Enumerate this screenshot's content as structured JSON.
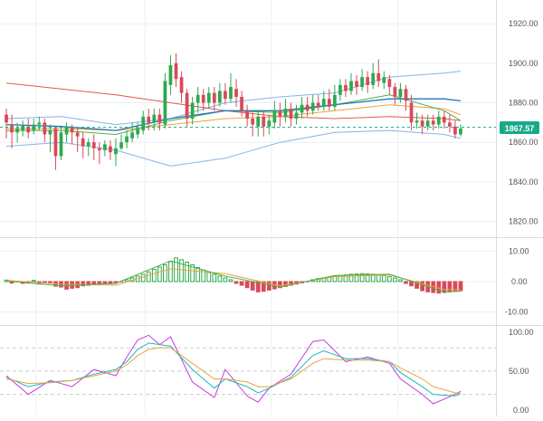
{
  "colors": {
    "up": "#2eaa4e",
    "down": "#d94a5a",
    "bb_band": "#8ab2ea",
    "ma_red": "#e05a4f",
    "ma_green": "#4bb04b",
    "ma_blue": "#1f77b4",
    "ma_orange": "#e8a43c",
    "stoch_purple": "#c63bdc",
    "stoch_teal": "#20b6c2",
    "stoch_orange": "#e8a43c",
    "price_badge": "#18a98b",
    "grid": "#eceff2",
    "axis": "#555555"
  },
  "price_axis_ticks": [
    "1920.00",
    "1900.00",
    "1880.00",
    "1860.00",
    "1840.00",
    "1820.00"
  ],
  "current_price_label": "1867.57",
  "macd_axis_ticks": [
    "10.00",
    "0.00",
    "-10.00"
  ],
  "stoch_axis_ticks": [
    "100.00",
    "50.00",
    "0.00"
  ],
  "chart_data": [
    {
      "type": "candlestick",
      "panel": "price",
      "ylim": [
        1812,
        1932
      ],
      "current_price": 1867.57,
      "candles": [
        [
          1874,
          1870,
          1877,
          1862
        ],
        [
          1869,
          1865,
          1874,
          1857
        ],
        [
          1865,
          1867,
          1870,
          1860
        ],
        [
          1866,
          1869,
          1871,
          1863
        ],
        [
          1868,
          1865,
          1872,
          1862
        ],
        [
          1866,
          1869,
          1872,
          1864
        ],
        [
          1869,
          1870,
          1873,
          1866
        ],
        [
          1870,
          1864,
          1872,
          1860
        ],
        [
          1864,
          1866,
          1869,
          1855
        ],
        [
          1867,
          1853,
          1868,
          1846
        ],
        [
          1853,
          1865,
          1867,
          1851
        ],
        [
          1864,
          1868,
          1870,
          1860
        ],
        [
          1868,
          1865,
          1869,
          1859
        ],
        [
          1865,
          1863,
          1867,
          1855
        ],
        [
          1862,
          1858,
          1865,
          1852
        ],
        [
          1858,
          1860,
          1862,
          1853
        ],
        [
          1860,
          1857,
          1864,
          1851
        ],
        [
          1857,
          1856,
          1860,
          1849
        ],
        [
          1856,
          1859,
          1861,
          1853
        ],
        [
          1858,
          1855,
          1861,
          1851
        ],
        [
          1854,
          1857,
          1862,
          1848
        ],
        [
          1857,
          1860,
          1864,
          1856
        ],
        [
          1860,
          1863,
          1866,
          1857
        ],
        [
          1862,
          1865,
          1870,
          1860
        ],
        [
          1864,
          1867,
          1870,
          1862
        ],
        [
          1866,
          1873,
          1876,
          1864
        ],
        [
          1873,
          1870,
          1877,
          1866
        ],
        [
          1870,
          1874,
          1877,
          1866
        ],
        [
          1874,
          1870,
          1877,
          1866
        ],
        [
          1869,
          1891,
          1895,
          1867
        ],
        [
          1889,
          1899,
          1904,
          1884
        ],
        [
          1900,
          1892,
          1905,
          1888
        ],
        [
          1893,
          1885,
          1896,
          1880
        ],
        [
          1885,
          1872,
          1887,
          1868
        ],
        [
          1872,
          1880,
          1883,
          1869
        ],
        [
          1880,
          1884,
          1888,
          1875
        ],
        [
          1884,
          1880,
          1887,
          1876
        ],
        [
          1880,
          1885,
          1888,
          1877
        ],
        [
          1885,
          1880,
          1888,
          1876
        ],
        [
          1880,
          1886,
          1890,
          1878
        ],
        [
          1886,
          1882,
          1890,
          1879
        ],
        [
          1882,
          1888,
          1895,
          1880
        ],
        [
          1887,
          1883,
          1892,
          1878
        ],
        [
          1883,
          1876,
          1886,
          1873
        ],
        [
          1876,
          1872,
          1879,
          1868
        ],
        [
          1872,
          1869,
          1875,
          1863
        ],
        [
          1868,
          1873,
          1876,
          1863
        ],
        [
          1873,
          1868,
          1876,
          1863
        ],
        [
          1868,
          1871,
          1874,
          1864
        ],
        [
          1870,
          1876,
          1881,
          1867
        ],
        [
          1876,
          1873,
          1880,
          1868
        ],
        [
          1873,
          1877,
          1882,
          1870
        ],
        [
          1877,
          1872,
          1880,
          1868
        ],
        [
          1872,
          1875,
          1879,
          1869
        ],
        [
          1875,
          1879,
          1883,
          1872
        ],
        [
          1879,
          1876,
          1883,
          1873
        ],
        [
          1876,
          1880,
          1884,
          1874
        ],
        [
          1880,
          1878,
          1884,
          1876
        ],
        [
          1878,
          1882,
          1886,
          1876
        ],
        [
          1882,
          1878,
          1887,
          1876
        ],
        [
          1878,
          1884,
          1889,
          1876
        ],
        [
          1884,
          1889,
          1892,
          1881
        ],
        [
          1889,
          1886,
          1892,
          1883
        ],
        [
          1886,
          1891,
          1895,
          1884
        ],
        [
          1891,
          1888,
          1894,
          1884
        ],
        [
          1888,
          1893,
          1897,
          1886
        ],
        [
          1893,
          1889,
          1896,
          1885
        ],
        [
          1889,
          1895,
          1900,
          1887
        ],
        [
          1895,
          1891,
          1902,
          1888
        ],
        [
          1890,
          1893,
          1896,
          1887
        ],
        [
          1892,
          1888,
          1894,
          1884
        ],
        [
          1888,
          1883,
          1890,
          1879
        ],
        [
          1883,
          1887,
          1890,
          1880
        ],
        [
          1887,
          1881,
          1889,
          1876
        ],
        [
          1880,
          1870,
          1884,
          1866
        ],
        [
          1870,
          1871,
          1875,
          1867
        ],
        [
          1871,
          1868,
          1874,
          1864
        ],
        [
          1868,
          1871,
          1874,
          1866
        ],
        [
          1871,
          1869,
          1874,
          1866
        ],
        [
          1869,
          1873,
          1876,
          1867
        ],
        [
          1873,
          1870,
          1876,
          1867
        ],
        [
          1870,
          1868,
          1874,
          1865
        ],
        [
          1868,
          1864,
          1871,
          1862
        ],
        [
          1864,
          1867,
          1869,
          1863
        ]
      ],
      "bollinger_upper": [
        [
          0,
          1872
        ],
        [
          10,
          1873
        ],
        [
          20,
          1869
        ],
        [
          30,
          1872
        ],
        [
          40,
          1880
        ],
        [
          50,
          1883
        ],
        [
          60,
          1885
        ],
        [
          70,
          1893
        ],
        [
          80,
          1895
        ],
        [
          83,
          1896
        ]
      ],
      "bollinger_lower": [
        [
          0,
          1858
        ],
        [
          10,
          1860
        ],
        [
          20,
          1856
        ],
        [
          30,
          1848
        ],
        [
          40,
          1852
        ],
        [
          50,
          1860
        ],
        [
          60,
          1865
        ],
        [
          70,
          1866
        ],
        [
          80,
          1864
        ],
        [
          83,
          1862
        ]
      ],
      "ma_red": [
        [
          0,
          1890
        ],
        [
          10,
          1887
        ],
        [
          20,
          1884
        ],
        [
          30,
          1880
        ],
        [
          40,
          1876
        ],
        [
          50,
          1873
        ],
        [
          60,
          1872
        ],
        [
          70,
          1873
        ],
        [
          80,
          1872
        ],
        [
          83,
          1871
        ]
      ],
      "ma_green": [
        [
          0,
          1866
        ],
        [
          10,
          1866
        ],
        [
          20,
          1864
        ],
        [
          30,
          1871
        ],
        [
          40,
          1876
        ],
        [
          50,
          1875
        ],
        [
          60,
          1879
        ],
        [
          70,
          1884
        ],
        [
          80,
          1876
        ],
        [
          83,
          1871
        ]
      ],
      "ma_blue": [
        [
          0,
          1869
        ],
        [
          10,
          1868
        ],
        [
          20,
          1866
        ],
        [
          30,
          1872
        ],
        [
          40,
          1876
        ],
        [
          50,
          1876
        ],
        [
          60,
          1879
        ],
        [
          70,
          1882
        ],
        [
          80,
          1882
        ],
        [
          83,
          1881
        ]
      ],
      "ma_orange": [
        [
          0,
          1867
        ],
        [
          10,
          1867
        ],
        [
          20,
          1866
        ],
        [
          30,
          1869
        ],
        [
          40,
          1872
        ],
        [
          50,
          1873
        ],
        [
          60,
          1876
        ],
        [
          70,
          1879
        ],
        [
          80,
          1877
        ],
        [
          83,
          1874
        ]
      ]
    },
    {
      "type": "bar",
      "panel": "macd",
      "ylim": [
        -14,
        14
      ],
      "histogram": [
        0.5,
        -0.5,
        0.2,
        -0.6,
        -0.5,
        0.4,
        -0.8,
        -0.4,
        -0.6,
        -1.5,
        -1.8,
        -2.5,
        -2.2,
        -2.0,
        -1.4,
        -1.2,
        -0.8,
        -1.0,
        -0.6,
        -0.7,
        -0.4,
        -0.3,
        0.6,
        1.2,
        1.8,
        2.4,
        3.2,
        4.0,
        4.8,
        5.5,
        6.6,
        7.8,
        7.2,
        6.4,
        5.5,
        4.6,
        3.8,
        3.0,
        2.4,
        1.8,
        1.2,
        0.6,
        -0.6,
        -1.2,
        -2.0,
        -2.8,
        -3.4,
        -3.2,
        -2.8,
        -2.4,
        -2.0,
        -1.6,
        -1.2,
        -0.8,
        -0.4,
        0.3,
        0.6,
        1.0,
        1.2,
        1.5,
        1.8,
        2.0,
        2.2,
        2.4,
        2.5,
        2.6,
        2.5,
        2.4,
        2.2,
        2.0,
        1.6,
        1.2,
        0.6,
        -0.6,
        -1.4,
        -2.2,
        -3.0,
        -3.4,
        -3.6,
        -3.8,
        -3.6,
        -3.4,
        -3.2,
        -3.0
      ],
      "signal": [
        [
          0,
          0.4
        ],
        [
          10,
          -0.8
        ],
        [
          20,
          -1.2
        ],
        [
          30,
          4.2
        ],
        [
          40,
          2.6
        ],
        [
          50,
          -1.4
        ],
        [
          60,
          1.6
        ],
        [
          70,
          2.2
        ],
        [
          80,
          -2.6
        ],
        [
          83,
          -2.8
        ]
      ],
      "macd_line": [
        [
          0,
          0.2
        ],
        [
          10,
          -1.4
        ],
        [
          20,
          -0.6
        ],
        [
          30,
          6.8
        ],
        [
          40,
          1.8
        ],
        [
          50,
          -1.8
        ],
        [
          60,
          2.0
        ],
        [
          70,
          2.4
        ],
        [
          80,
          -3.4
        ],
        [
          83,
          -3.2
        ]
      ]
    },
    {
      "type": "line",
      "panel": "stochastic",
      "ylim": [
        -6,
        108
      ],
      "levels": [
        80,
        50,
        20
      ],
      "series": [
        {
          "values": [
            [
              0,
              44
            ],
            [
              4,
              20
            ],
            [
              8,
              38
            ],
            [
              12,
              30
            ],
            [
              16,
              52
            ],
            [
              20,
              44
            ],
            [
              22,
              68
            ],
            [
              24,
              90
            ],
            [
              26,
              96
            ],
            [
              28,
              84
            ],
            [
              30,
              94
            ],
            [
              34,
              36
            ],
            [
              38,
              16
            ],
            [
              40,
              52
            ],
            [
              44,
              18
            ],
            [
              46,
              10
            ],
            [
              48,
              28
            ],
            [
              52,
              46
            ],
            [
              56,
              88
            ],
            [
              58,
              90
            ],
            [
              62,
              62
            ],
            [
              66,
              68
            ],
            [
              70,
              60
            ],
            [
              72,
              40
            ],
            [
              76,
              20
            ],
            [
              78,
              8
            ],
            [
              82,
              20
            ],
            [
              83,
              24
            ]
          ]
        },
        {
          "values": [
            [
              0,
              42
            ],
            [
              4,
              30
            ],
            [
              8,
              36
            ],
            [
              12,
              38
            ],
            [
              16,
              46
            ],
            [
              20,
              52
            ],
            [
              22,
              62
            ],
            [
              24,
              78
            ],
            [
              26,
              86
            ],
            [
              28,
              84
            ],
            [
              30,
              82
            ],
            [
              34,
              52
            ],
            [
              38,
              28
            ],
            [
              40,
              40
            ],
            [
              44,
              30
            ],
            [
              46,
              22
            ],
            [
              48,
              28
            ],
            [
              52,
              42
            ],
            [
              56,
              70
            ],
            [
              58,
              76
            ],
            [
              62,
              66
            ],
            [
              66,
              66
            ],
            [
              70,
              62
            ],
            [
              72,
              48
            ],
            [
              76,
              30
            ],
            [
              78,
              20
            ],
            [
              82,
              18
            ],
            [
              83,
              21
            ]
          ]
        },
        {
          "values": [
            [
              0,
              40
            ],
            [
              4,
              34
            ],
            [
              8,
              35
            ],
            [
              12,
              38
            ],
            [
              16,
              44
            ],
            [
              20,
              50
            ],
            [
              22,
              58
            ],
            [
              24,
              70
            ],
            [
              26,
              78
            ],
            [
              28,
              80
            ],
            [
              30,
              80
            ],
            [
              34,
              60
            ],
            [
              38,
              40
            ],
            [
              40,
              40
            ],
            [
              44,
              36
            ],
            [
              46,
              30
            ],
            [
              48,
              30
            ],
            [
              52,
              40
            ],
            [
              56,
              60
            ],
            [
              58,
              66
            ],
            [
              62,
              64
            ],
            [
              66,
              64
            ],
            [
              70,
              62
            ],
            [
              72,
              54
            ],
            [
              76,
              40
            ],
            [
              78,
              30
            ],
            [
              82,
              22
            ],
            [
              83,
              21
            ]
          ]
        }
      ]
    }
  ]
}
